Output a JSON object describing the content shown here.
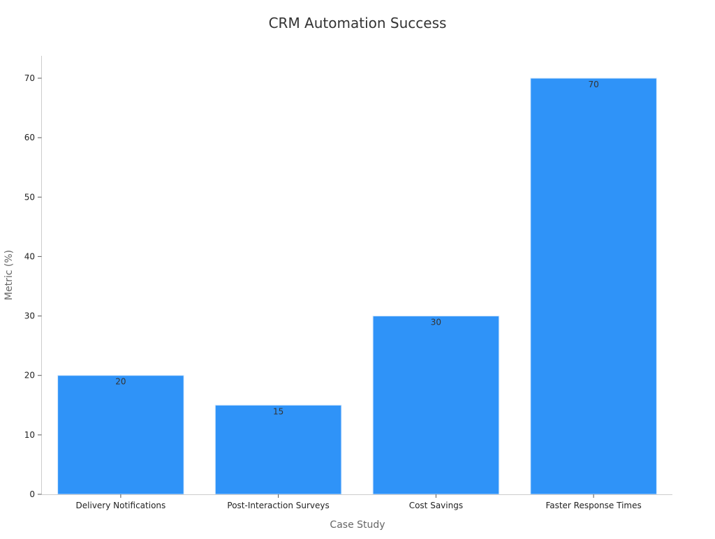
{
  "chart_data": {
    "type": "bar",
    "title": "CRM Automation Success",
    "xlabel": "Case Study",
    "ylabel": "Metric (%)",
    "categories": [
      "Delivery Notifications",
      "Post-Interaction Surveys",
      "Cost Savings",
      "Faster Response Times"
    ],
    "values": [
      20,
      15,
      30,
      70
    ],
    "data_labels": [
      "20",
      "15",
      "30",
      "70"
    ],
    "y_ticks": [
      0,
      10,
      20,
      30,
      40,
      50,
      60,
      70
    ],
    "ylim": [
      0,
      74
    ],
    "grid": false,
    "legend": "none",
    "bar_color": "#2f93f8",
    "bar_edge_color": "#d6e9fd"
  }
}
